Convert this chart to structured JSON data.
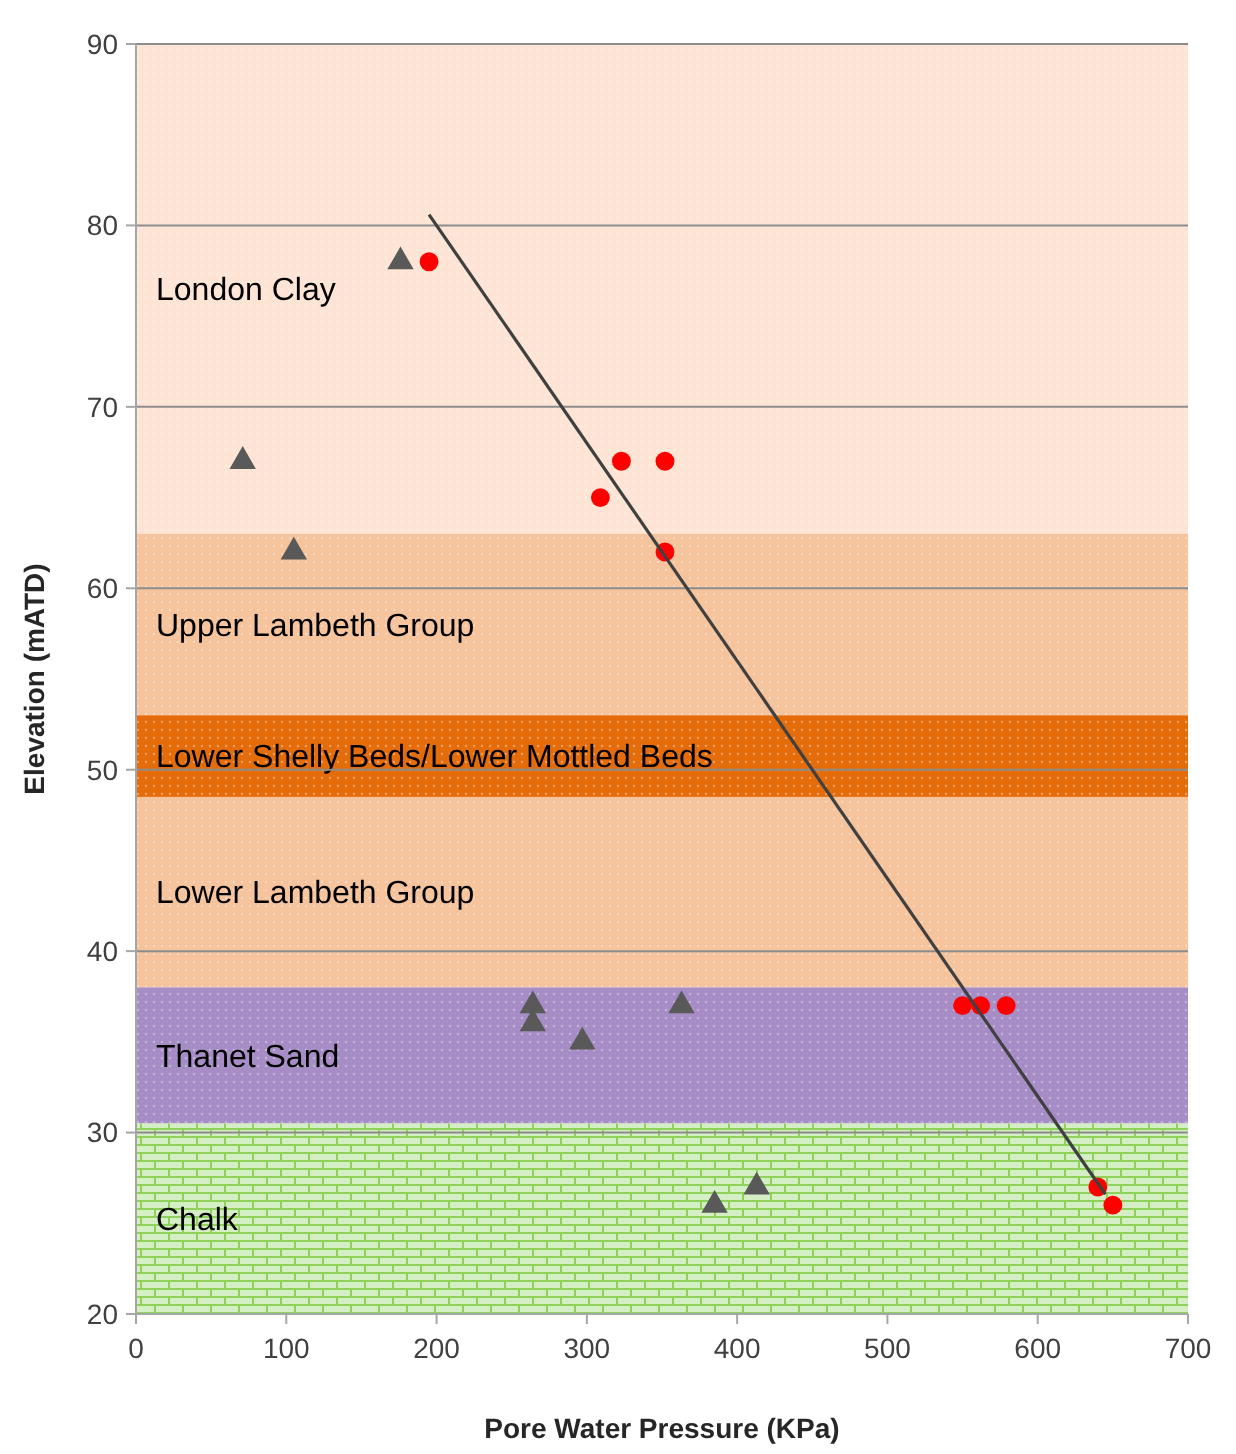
{
  "chart_data": {
    "type": "scatter",
    "xlabel": "Pore Water Pressure (KPa)",
    "ylabel": "Elevation (mATD)",
    "xlim": [
      0,
      700
    ],
    "xticks": [
      0,
      100,
      200,
      300,
      400,
      500,
      600,
      700
    ],
    "ylim": [
      20,
      90
    ],
    "yticks": [
      20,
      30,
      40,
      50,
      60,
      70,
      80,
      90
    ],
    "grid": "y",
    "bands": [
      {
        "axis": "y",
        "from": 63,
        "to": 90,
        "label": "London Clay",
        "color": "#fde4d4"
      },
      {
        "axis": "y",
        "from": 53,
        "to": 63,
        "label": "Upper Lambeth Group",
        "color": "#f5c39c"
      },
      {
        "axis": "y",
        "from": 48.5,
        "to": 53,
        "label": "Lower Shelly Beds/Lower Mottled Beds",
        "color": "#e46c0a"
      },
      {
        "axis": "y",
        "from": 38,
        "to": 48.5,
        "label": "Lower Lambeth Group",
        "color": "#f5c39c"
      },
      {
        "axis": "y",
        "from": 30.5,
        "to": 38,
        "label": "Thanet Sand",
        "color": "#a68dc6"
      },
      {
        "axis": "y",
        "from": 20,
        "to": 30.5,
        "label": "Chalk",
        "color": "#d4efc4"
      }
    ],
    "series": [
      {
        "marker": "circle",
        "color": "#ff0000",
        "x": [
          195,
          309,
          323,
          352,
          352,
          550,
          562,
          579,
          640,
          650
        ],
        "values": [
          78,
          65,
          67,
          67,
          62,
          37,
          37,
          37,
          27,
          26
        ]
      },
      {
        "type": "scatter",
        "marker": "triangle",
        "color": "#595959",
        "x": [
          176,
          71,
          105,
          264,
          264,
          297,
          363,
          385,
          413
        ],
        "values": [
          78,
          67,
          62,
          37,
          36,
          35,
          37,
          26,
          27
        ]
      },
      {
        "type": "line",
        "marker": "none",
        "color": "#404040",
        "x": [
          195,
          645
        ],
        "values": [
          80.6,
          26.6
        ]
      }
    ]
  }
}
